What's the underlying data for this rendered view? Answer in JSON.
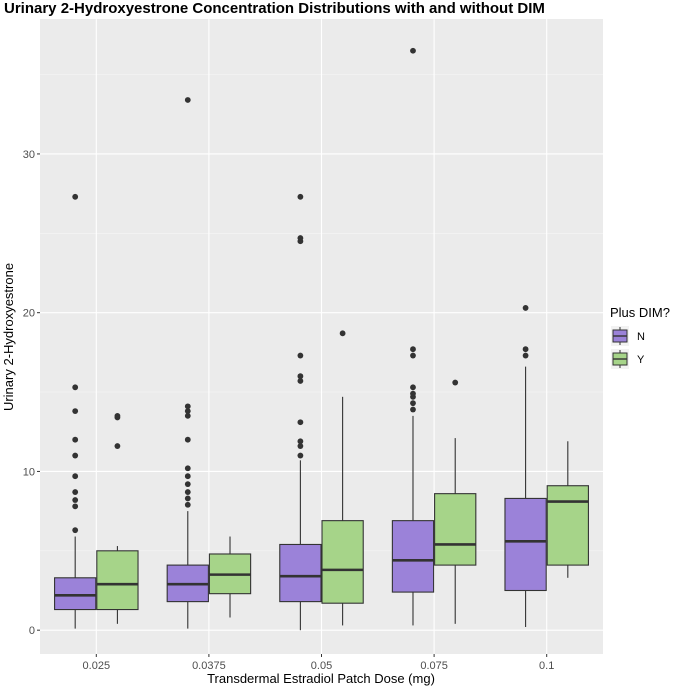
{
  "chart_data": {
    "type": "boxplot",
    "title": "Urinary 2-Hydroxyestrone Concentration Distributions with and without DIM",
    "xlabel": "Transdermal Estradiol Patch Dose (mg)",
    "ylabel": "Urinary 2-Hydroxyestrone",
    "categories": [
      "0.025",
      "0.0375",
      "0.05",
      "0.075",
      "0.1"
    ],
    "ylim": [
      -1.5,
      38.5
    ],
    "yticks": [
      0,
      10,
      20,
      30
    ],
    "legend": {
      "title": "Plus DIM?",
      "position": "right",
      "entries": [
        "N",
        "Y"
      ]
    },
    "series": [
      {
        "name": "N",
        "color": "#9b82d9",
        "boxes": [
          {
            "category": "0.025",
            "whisker_low": 0.1,
            "q1": 1.3,
            "median": 2.2,
            "q3": 3.3,
            "whisker_high": 5.9,
            "outliers": [
              6.3,
              7.8,
              8.2,
              8.7,
              9.7,
              11.0,
              12.0,
              13.8,
              15.3,
              27.3
            ]
          },
          {
            "category": "0.0375",
            "whisker_low": 0.1,
            "q1": 1.8,
            "median": 2.9,
            "q3": 4.1,
            "whisker_high": 7.5,
            "outliers": [
              7.9,
              8.3,
              8.7,
              9.2,
              9.7,
              10.2,
              12.0,
              13.5,
              13.8,
              14.1,
              33.4
            ]
          },
          {
            "category": "0.05",
            "whisker_low": 0.0,
            "q1": 1.8,
            "median": 3.4,
            "q3": 5.4,
            "whisker_high": 10.7,
            "outliers": [
              11.0,
              11.6,
              11.9,
              13.1,
              15.7,
              16.0,
              17.3,
              24.5,
              24.7,
              27.3
            ]
          },
          {
            "category": "0.075",
            "whisker_low": 0.3,
            "q1": 2.4,
            "median": 4.4,
            "q3": 6.9,
            "whisker_high": 13.5,
            "outliers": [
              13.9,
              14.3,
              14.7,
              14.9,
              15.3,
              17.3,
              17.7,
              36.5
            ]
          },
          {
            "category": "0.1",
            "whisker_low": 0.2,
            "q1": 2.5,
            "median": 5.6,
            "q3": 8.3,
            "whisker_high": 16.6,
            "outliers": [
              17.3,
              17.7,
              20.3
            ]
          }
        ]
      },
      {
        "name": "Y",
        "color": "#a6d489",
        "boxes": [
          {
            "category": "0.025",
            "whisker_low": 0.4,
            "q1": 1.3,
            "median": 2.9,
            "q3": 5.0,
            "whisker_high": 5.3,
            "outliers": [
              11.6,
              13.4,
              13.5
            ]
          },
          {
            "category": "0.0375",
            "whisker_low": 0.8,
            "q1": 2.3,
            "median": 3.5,
            "q3": 4.8,
            "whisker_high": 5.9,
            "outliers": []
          },
          {
            "category": "0.05",
            "whisker_low": 0.3,
            "q1": 1.7,
            "median": 3.8,
            "q3": 6.9,
            "whisker_high": 14.7,
            "outliers": [
              18.7
            ]
          },
          {
            "category": "0.075",
            "whisker_low": 0.4,
            "q1": 4.1,
            "median": 5.4,
            "q3": 8.6,
            "whisker_high": 12.1,
            "outliers": [
              15.6
            ]
          },
          {
            "category": "0.1",
            "whisker_low": 3.3,
            "q1": 4.1,
            "median": 8.1,
            "q3": 9.1,
            "whisker_high": 11.9,
            "outliers": []
          }
        ]
      }
    ]
  }
}
